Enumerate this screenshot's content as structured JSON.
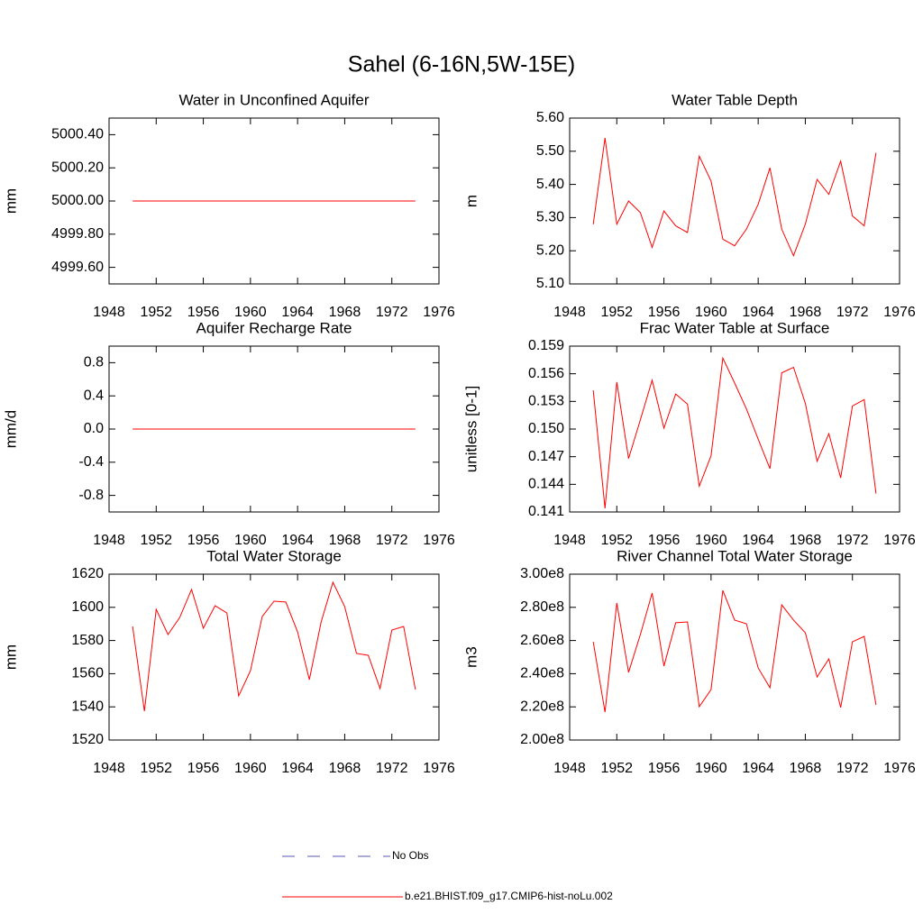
{
  "title": "Sahel (6-16N,5W-15E)",
  "legend": [
    {
      "name": "No Obs",
      "color": "#5a5ab4",
      "dashed": true
    },
    {
      "name": "b.e21.BHIST.f09_g17.CMIP6-hist-noLu.002",
      "color": "#ff0000",
      "dashed": false
    }
  ],
  "chart_data": [
    {
      "type": "line",
      "title": "Water in Unconfined Aquifer",
      "ylabel": "mm",
      "color": "#ff0000",
      "x": [
        1950,
        1951,
        1952,
        1953,
        1954,
        1955,
        1956,
        1957,
        1958,
        1959,
        1960,
        1961,
        1962,
        1963,
        1964,
        1965,
        1966,
        1967,
        1968,
        1969,
        1970,
        1971,
        1972,
        1973,
        1974
      ],
      "values": [
        5000,
        5000,
        5000,
        5000,
        5000,
        5000,
        5000,
        5000,
        5000,
        5000,
        5000,
        5000,
        5000,
        5000,
        5000,
        5000,
        5000,
        5000,
        5000,
        5000,
        5000,
        5000,
        5000,
        5000,
        5000
      ],
      "xlim": [
        1948,
        1976
      ],
      "xticks": [
        1948,
        1952,
        1956,
        1960,
        1964,
        1968,
        1972,
        1976
      ],
      "ylim": [
        4999.5,
        5000.5
      ],
      "yticks": [
        {
          "value": 4999.6,
          "label": "4999.60"
        },
        {
          "value": 4999.8,
          "label": "4999.80"
        },
        {
          "value": 5000,
          "label": "5000.00"
        },
        {
          "value": 5000.2,
          "label": "5000.20"
        },
        {
          "value": 5000.4,
          "label": "5000.40"
        }
      ]
    },
    {
      "type": "line",
      "title": "Water Table Depth",
      "ylabel": "m",
      "color": "#ff0000",
      "x": [
        1950,
        1951,
        1952,
        1953,
        1954,
        1955,
        1956,
        1957,
        1958,
        1959,
        1960,
        1961,
        1962,
        1963,
        1964,
        1965,
        1966,
        1967,
        1968,
        1969,
        1970,
        1971,
        1972,
        1973,
        1974
      ],
      "values": [
        5.28,
        5.54,
        5.28,
        5.35,
        5.315,
        5.21,
        5.32,
        5.275,
        5.255,
        5.485,
        5.41,
        5.235,
        5.215,
        5.265,
        5.34,
        5.45,
        5.265,
        5.185,
        5.28,
        5.415,
        5.37,
        5.47,
        5.305,
        5.275,
        5.495
      ],
      "xlim": [
        1948,
        1976
      ],
      "xticks": [
        1948,
        1952,
        1956,
        1960,
        1964,
        1968,
        1972,
        1976
      ],
      "ylim": [
        5.1,
        5.6
      ],
      "yticks": [
        {
          "value": 5.1,
          "label": "5.10"
        },
        {
          "value": 5.2,
          "label": "5.20"
        },
        {
          "value": 5.3,
          "label": "5.30"
        },
        {
          "value": 5.4,
          "label": "5.40"
        },
        {
          "value": 5.5,
          "label": "5.50"
        },
        {
          "value": 5.6,
          "label": "5.60"
        }
      ]
    },
    {
      "type": "line",
      "title": "Aquifer Recharge Rate",
      "ylabel": "mm/d",
      "color": "#ff0000",
      "x": [
        1950,
        1951,
        1952,
        1953,
        1954,
        1955,
        1956,
        1957,
        1958,
        1959,
        1960,
        1961,
        1962,
        1963,
        1964,
        1965,
        1966,
        1967,
        1968,
        1969,
        1970,
        1971,
        1972,
        1973,
        1974
      ],
      "values": [
        0,
        0,
        0,
        0,
        0,
        0,
        0,
        0,
        0,
        0,
        0,
        0,
        0,
        0,
        0,
        0,
        0,
        0,
        0,
        0,
        0,
        0,
        0,
        0,
        0
      ],
      "xlim": [
        1948,
        1976
      ],
      "xticks": [
        1948,
        1952,
        1956,
        1960,
        1964,
        1968,
        1972,
        1976
      ],
      "ylim": [
        -1,
        1
      ],
      "yticks": [
        -0.8,
        -0.4,
        {
          "value": 0,
          "label": "0.0"
        },
        0.4,
        0.8
      ]
    },
    {
      "type": "line",
      "title": "Frac Water Table at Surface",
      "ylabel": "unitless [0-1]",
      "color": "#ff0000",
      "x": [
        1950,
        1951,
        1952,
        1953,
        1954,
        1955,
        1956,
        1957,
        1958,
        1959,
        1960,
        1961,
        1962,
        1963,
        1964,
        1965,
        1966,
        1967,
        1968,
        1969,
        1970,
        1971,
        1972,
        1973,
        1974
      ],
      "values": [
        0.1542,
        0.1414,
        0.1551,
        0.1468,
        0.151,
        0.1553,
        0.1501,
        0.1538,
        0.1527,
        0.1438,
        0.1471,
        0.1577,
        0.155,
        0.1522,
        0.1489,
        0.1457,
        0.1561,
        0.1567,
        0.1528,
        0.1465,
        0.1495,
        0.1447,
        0.1525,
        0.1532,
        0.143
      ],
      "xlim": [
        1948,
        1976
      ],
      "xticks": [
        1948,
        1952,
        1956,
        1960,
        1964,
        1968,
        1972,
        1976
      ],
      "ylim": [
        0.141,
        0.159
      ],
      "yticks": [
        0.141,
        0.144,
        0.147,
        {
          "value": 0.15,
          "label": "0.150"
        },
        0.153,
        0.156,
        0.159
      ]
    },
    {
      "type": "line",
      "title": "Total Water Storage",
      "ylabel": "mm",
      "color": "#ff0000",
      "x": [
        1950,
        1951,
        1952,
        1953,
        1954,
        1955,
        1956,
        1957,
        1958,
        1959,
        1960,
        1961,
        1962,
        1963,
        1964,
        1965,
        1966,
        1967,
        1968,
        1969,
        1970,
        1971,
        1972,
        1973,
        1974
      ],
      "values": [
        1588.5,
        1537.4,
        1598.8,
        1583.6,
        1593.9,
        1610.8,
        1587.4,
        1601,
        1596.6,
        1546.6,
        1561.8,
        1594.5,
        1603.7,
        1603.2,
        1585.2,
        1556.4,
        1591.2,
        1615.1,
        1600.4,
        1572.2,
        1571.1,
        1551,
        1586.3,
        1588.5,
        1550.4
      ],
      "xlim": [
        1948,
        1976
      ],
      "xticks": [
        1948,
        1952,
        1956,
        1960,
        1964,
        1968,
        1972,
        1976
      ],
      "ylim": [
        1520,
        1620
      ],
      "yticks": [
        1520,
        1540,
        1560,
        1580,
        1600,
        1620
      ]
    },
    {
      "type": "line",
      "title": "River Channel Total Water Storage",
      "ylabel": "m3",
      "color": "#ff0000",
      "x": [
        1950,
        1951,
        1952,
        1953,
        1954,
        1955,
        1956,
        1957,
        1958,
        1959,
        1960,
        1961,
        1962,
        1963,
        1964,
        1965,
        1966,
        1967,
        1968,
        1969,
        1970,
        1971,
        1972,
        1973,
        1974
      ],
      "values": [
        259200000,
        216800000,
        282600000,
        240800000,
        263600000,
        288600000,
        244600000,
        270700000,
        271200000,
        220100000,
        230400000,
        290200000,
        272300000,
        270100000,
        243500000,
        231500000,
        281500000,
        272300000,
        264700000,
        238000000,
        248900000,
        219600000,
        259200000,
        262500000,
        221200000
      ],
      "xlim": [
        1948,
        1976
      ],
      "xticks": [
        1948,
        1952,
        1956,
        1960,
        1964,
        1968,
        1972,
        1976
      ],
      "ylim": [
        200000000,
        300000000
      ],
      "yticks": [
        {
          "value": 200000000,
          "label": "2.00e8"
        },
        {
          "value": 220000000,
          "label": "2.20e8"
        },
        {
          "value": 240000000,
          "label": "2.40e8"
        },
        {
          "value": 260000000,
          "label": "2.60e8"
        },
        {
          "value": 280000000,
          "label": "2.80e8"
        },
        {
          "value": 300000000,
          "label": "3.00e8"
        }
      ]
    }
  ]
}
